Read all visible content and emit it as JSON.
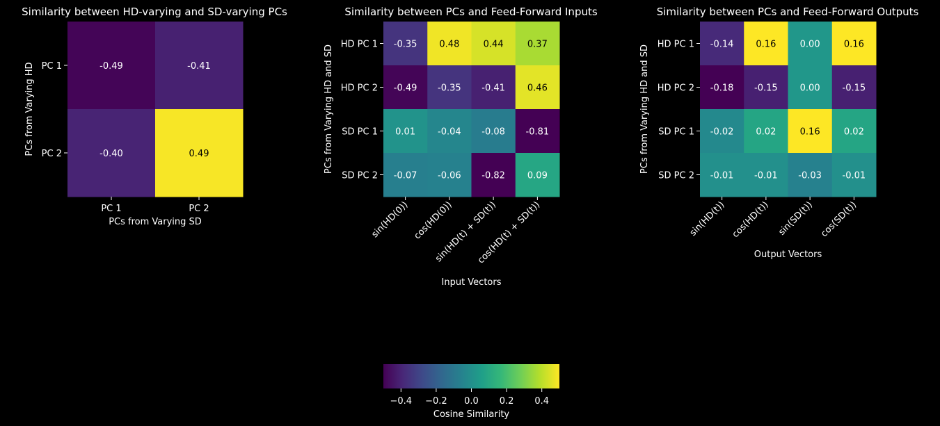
{
  "colorbar": {
    "label": "Cosine Similarity",
    "min": -0.5,
    "max": 0.5,
    "ticks": [
      -0.4,
      -0.2,
      0.0,
      0.2,
      0.4
    ],
    "tick_labels": [
      "−0.4",
      "−0.2",
      "0.0",
      "0.2",
      "0.4"
    ],
    "colormap": "viridis"
  },
  "chart_data": [
    {
      "type": "heatmap",
      "title": "Similarity between HD-varying and SD-varying PCs",
      "xlabel": "PCs from Varying SD",
      "ylabel": "PCs from Varying HD",
      "x_categories": [
        "PC 1",
        "PC 2"
      ],
      "y_categories": [
        "PC 1",
        "PC 2"
      ],
      "x_rotated": false,
      "vmin": -0.5,
      "vmax": 0.5,
      "values": [
        [
          -0.49,
          -0.41
        ],
        [
          -0.4,
          0.49
        ]
      ]
    },
    {
      "type": "heatmap",
      "title": "Similarity between PCs and Feed-Forward Inputs",
      "xlabel": "Input Vectors",
      "ylabel": "PCs from Varying HD and SD",
      "x_categories": [
        "sin(HD(0))",
        "cos(HD(0))",
        "sin(HD(t) + SD(t))",
        "cos(HD(t) + SD(t))"
      ],
      "y_categories": [
        "HD PC 1",
        "HD PC 2",
        "SD PC 1",
        "SD PC 2"
      ],
      "x_rotated": true,
      "vmin": -0.5,
      "vmax": 0.5,
      "values": [
        [
          -0.35,
          0.48,
          0.44,
          0.37
        ],
        [
          -0.49,
          -0.35,
          -0.41,
          0.46
        ],
        [
          0.01,
          -0.04,
          -0.08,
          -0.81
        ],
        [
          -0.07,
          -0.06,
          -0.82,
          0.09
        ]
      ]
    },
    {
      "type": "heatmap",
      "title": "Similarity between PCs and Feed-Forward Outputs",
      "xlabel": "Output Vectors",
      "ylabel": "PCs from Varying HD and SD",
      "x_categories": [
        "sin(HD(t))",
        "cos(HD(t))",
        "sin(SD(t))",
        "cos(SD(t))"
      ],
      "y_categories": [
        "HD PC 1",
        "HD PC 2",
        "SD PC 1",
        "SD PC 2"
      ],
      "x_rotated": true,
      "vmin": -0.18,
      "vmax": 0.16,
      "values": [
        [
          -0.14,
          0.16,
          0.0,
          0.16
        ],
        [
          -0.18,
          -0.15,
          0.0,
          -0.15
        ],
        [
          -0.02,
          0.02,
          0.16,
          0.02
        ],
        [
          -0.01,
          -0.01,
          -0.03,
          -0.01
        ]
      ]
    }
  ]
}
